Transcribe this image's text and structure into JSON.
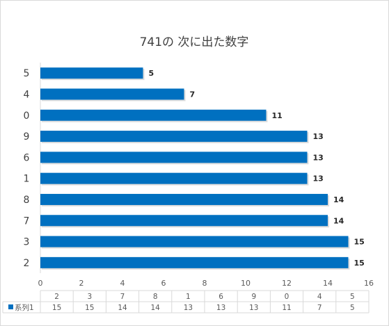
{
  "chart_data": {
    "type": "bar",
    "orientation": "horizontal",
    "title": "741の 次に出た数字",
    "categories": [
      "2",
      "3",
      "7",
      "8",
      "1",
      "6",
      "9",
      "0",
      "4",
      "5"
    ],
    "series": [
      {
        "name": "系列1",
        "values": [
          15,
          15,
          14,
          14,
          13,
          13,
          13,
          11,
          7,
          5
        ]
      }
    ],
    "xlim": [
      0,
      16
    ],
    "x_ticks": [
      "0",
      "2",
      "4",
      "6",
      "8",
      "10",
      "12",
      "14",
      "16"
    ],
    "grid": false,
    "data_labels": true,
    "data_table": true,
    "bar_color": "#0070c0"
  }
}
